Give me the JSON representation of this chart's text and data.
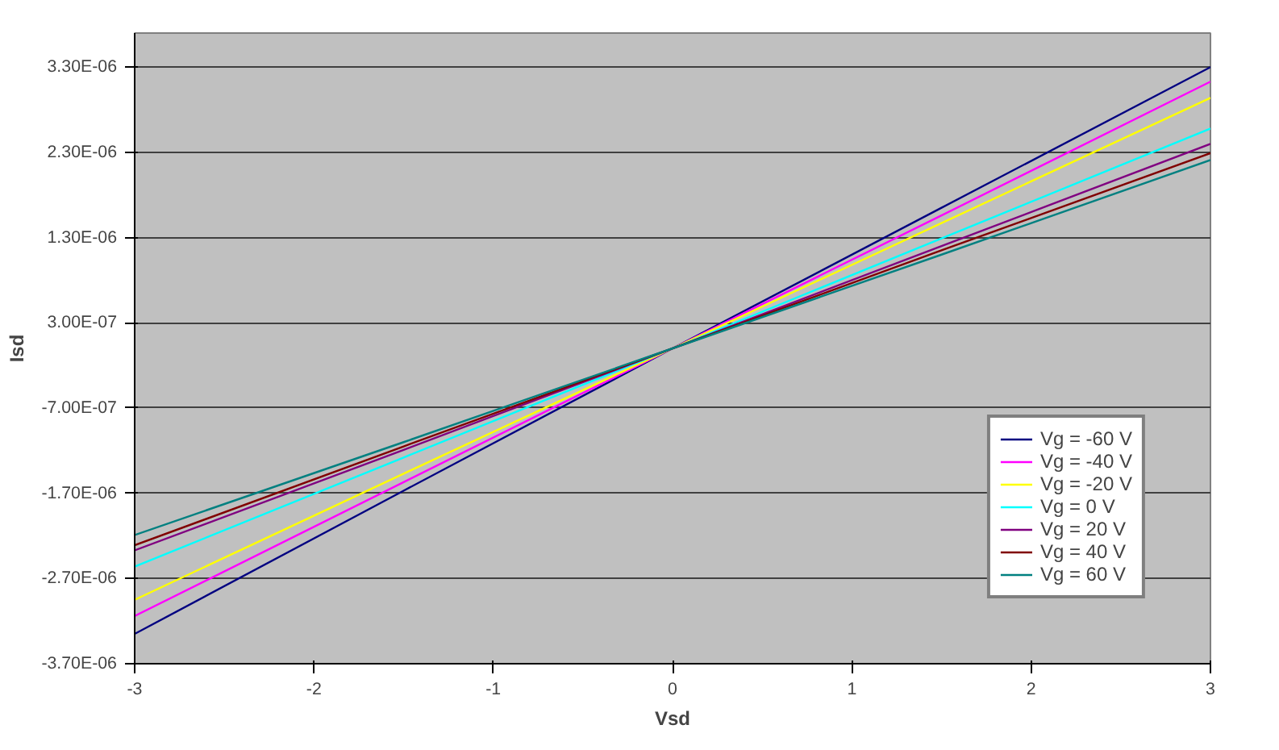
{
  "chart_data": {
    "type": "line",
    "xlabel": "Vsd",
    "ylabel": "Isd",
    "x": [
      -3,
      -1.5,
      0,
      1.5,
      3
    ],
    "series": [
      {
        "name": "Vg = -60 V",
        "color": "#000080",
        "values": [
          -3.35e-06,
          -1.67e-06,
          0,
          1.65e-06,
          3.3e-06
        ]
      },
      {
        "name": "Vg = -40 V",
        "color": "#ff00ff",
        "values": [
          -3.14e-06,
          -1.57e-06,
          0,
          1.56e-06,
          3.13e-06
        ]
      },
      {
        "name": "Vg = -20 V",
        "color": "#ffff00",
        "values": [
          -2.95e-06,
          -1.47e-06,
          0,
          1.47e-06,
          2.94e-06
        ]
      },
      {
        "name": "Vg = 0 V",
        "color": "#00ffff",
        "values": [
          -2.56e-06,
          -1.28e-06,
          0,
          1.29e-06,
          2.58e-06
        ]
      },
      {
        "name": "Vg = 20 V",
        "color": "#800080",
        "values": [
          -2.37e-06,
          -1.19e-06,
          0,
          1.2e-06,
          2.4e-06
        ]
      },
      {
        "name": "Vg = 40 V",
        "color": "#800000",
        "values": [
          -2.31e-06,
          -1.15e-06,
          0,
          1.15e-06,
          2.29e-06
        ]
      },
      {
        "name": "Vg = 60 V",
        "color": "#008080",
        "values": [
          -2.19e-06,
          -1.1e-06,
          0,
          1.1e-06,
          2.21e-06
        ]
      }
    ],
    "xlim": [
      -3,
      3
    ],
    "xticks": [
      -3,
      -2,
      -1,
      0,
      1,
      2,
      3
    ],
    "ylim": [
      -3.7e-06,
      3.7e-06
    ],
    "yticks": [
      {
        "value": 3.3e-06,
        "label": "3.30E-06"
      },
      {
        "value": 2.3e-06,
        "label": "2.30E-06"
      },
      {
        "value": 1.3e-06,
        "label": "1.30E-06"
      },
      {
        "value": 3e-07,
        "label": "3.00E-07"
      },
      {
        "value": -7e-07,
        "label": "-7.00E-07"
      },
      {
        "value": -1.7e-06,
        "label": "-1.70E-06"
      },
      {
        "value": -2.7e-06,
        "label": "-2.70E-06"
      },
      {
        "value": -3.7e-06,
        "label": "-3.70E-06"
      }
    ],
    "grid": "y",
    "legend": "bottom right",
    "marker": "none",
    "line_style": "solid"
  }
}
